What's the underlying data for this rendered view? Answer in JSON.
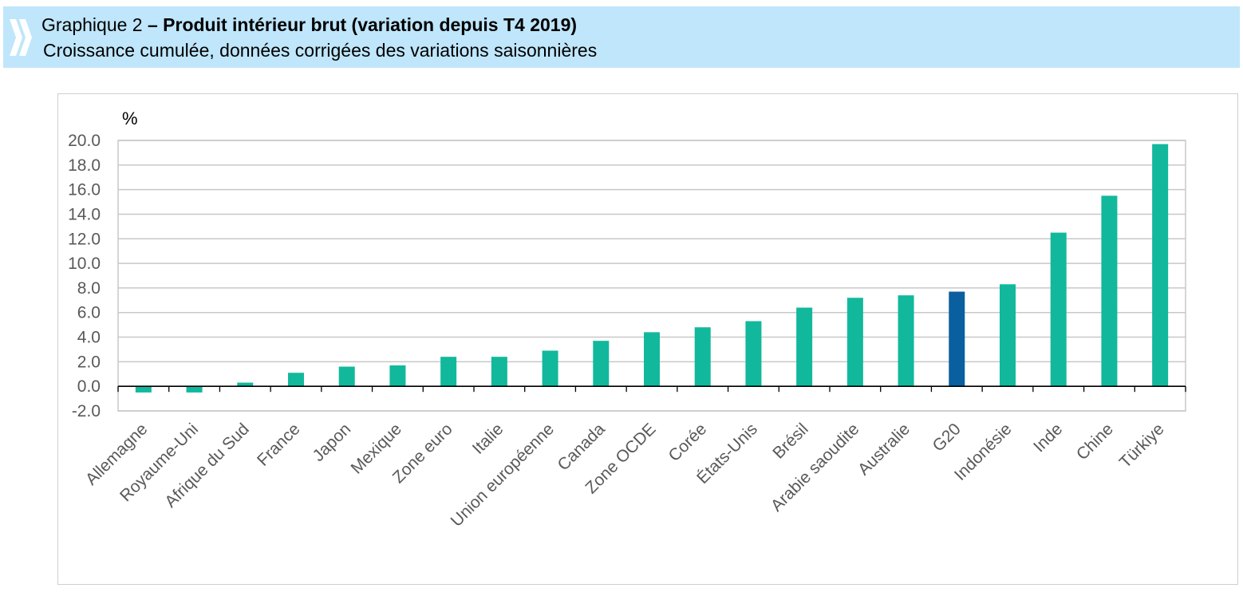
{
  "header": {
    "title_prefix": "Graphique 2",
    "title_text": " – Produit intérieur brut (variation depuis T4 2019)",
    "subtitle": "Croissance cumulée, données corrigées des variations saisonnières"
  },
  "colors": {
    "banner": "#bfe6fb",
    "bar": "#12b89c",
    "highlight": "#0a5f9e",
    "grid": "#c8c8c8"
  },
  "chart_data": {
    "type": "bar",
    "ylabel": "%",
    "ylim": [
      -2.0,
      20.0
    ],
    "yticks": [
      20.0,
      18.0,
      16.0,
      14.0,
      12.0,
      10.0,
      8.0,
      6.0,
      4.0,
      2.0,
      0.0,
      -2.0
    ],
    "grid": true,
    "categories": [
      "Allemagne",
      "Royaume-Uni",
      "Afrique du Sud",
      "France",
      "Japon",
      "Mexique",
      "Zone euro",
      "Italie",
      "Union européenne",
      "Canada",
      "Zone OCDE",
      "Corée",
      "États-Unis",
      "Brésil",
      "Arabie saoudite",
      "Australie",
      "G20",
      "Indonésie",
      "Inde",
      "Chine",
      "Türkiye"
    ],
    "values": [
      -0.5,
      -0.5,
      0.3,
      1.1,
      1.6,
      1.7,
      2.4,
      2.4,
      2.9,
      3.7,
      4.4,
      4.8,
      5.3,
      6.4,
      7.2,
      7.4,
      7.7,
      8.3,
      12.5,
      15.5,
      19.7
    ],
    "highlight": [
      "G20"
    ]
  }
}
